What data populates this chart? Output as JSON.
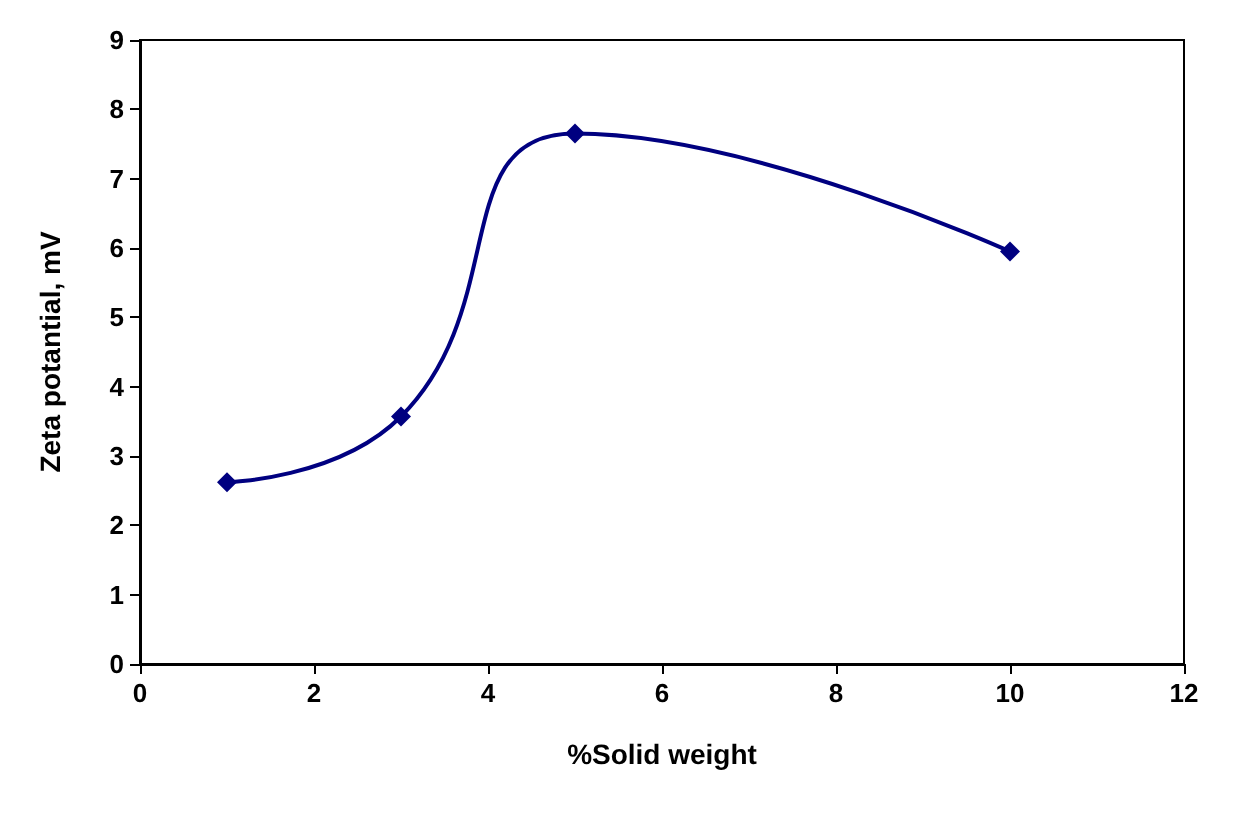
{
  "chart_data": {
    "type": "line",
    "xlabel": "%Solid weight",
    "ylabel": "Zeta potantial, mV",
    "x": [
      1,
      3,
      5,
      10
    ],
    "series": [
      {
        "color": "#000080",
        "values": [
          2.62,
          3.57,
          7.65,
          5.95
        ]
      }
    ],
    "xlim": [
      0,
      12
    ],
    "xticks": [
      0,
      2,
      4,
      6,
      8,
      10,
      12
    ],
    "ylim": [
      0,
      9
    ],
    "yticks": [
      0,
      1,
      2,
      3,
      4,
      5,
      6,
      7,
      8,
      9
    ],
    "grid": false,
    "marker": "diamond",
    "line_style": "solid"
  }
}
